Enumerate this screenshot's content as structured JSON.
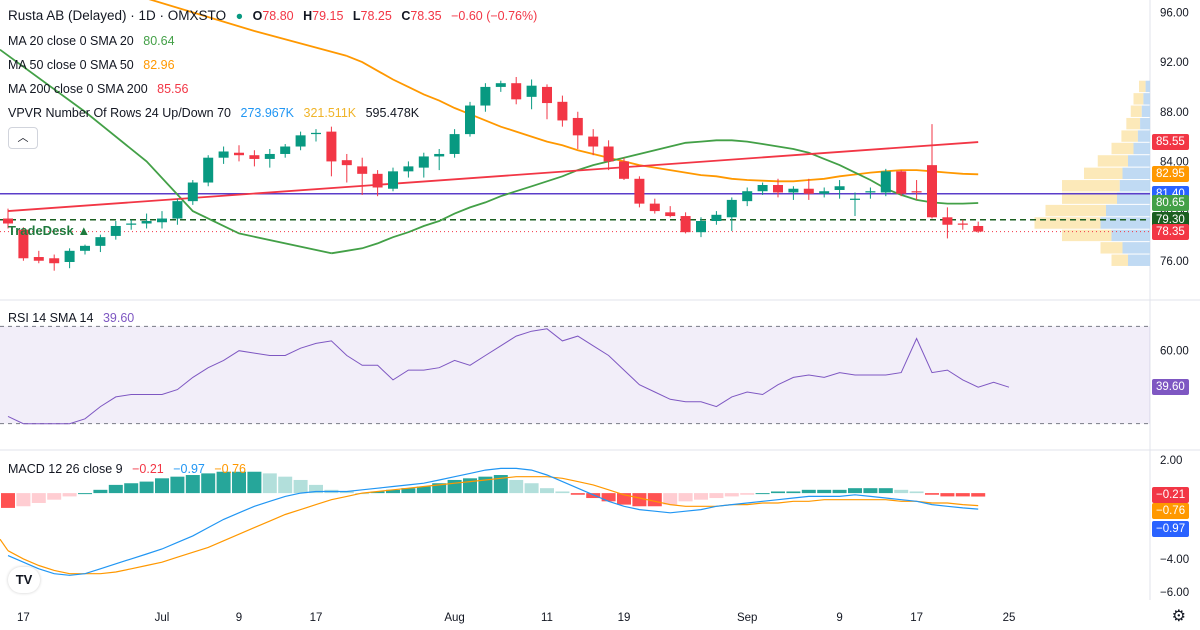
{
  "header": {
    "symbol": "Rusta AB (Delayed) · 1D · OMXSTO",
    "o_label": "O",
    "o": "78.80",
    "h_label": "H",
    "h": "79.15",
    "l_label": "L",
    "l": "78.25",
    "c_label": "C",
    "c": "78.35",
    "change": "−0.60 (−0.76%)"
  },
  "indicators": {
    "ma20": {
      "label": "MA 20 close 0 SMA 20",
      "value": "80.64",
      "color": "#43a047"
    },
    "ma50": {
      "label": "MA 50 close 0 SMA 50",
      "value": "82.96",
      "color": "#ff9800"
    },
    "ma200": {
      "label": "MA 200 close 0 SMA 200",
      "value": "85.56",
      "color": "#f23645"
    },
    "vpvr": {
      "label": "VPVR Number Of Rows 24 Up/Down 70",
      "up": "273.967K",
      "down": "321.511K",
      "total": "595.478K"
    },
    "rsi": {
      "label": "RSI 14 SMA 14",
      "value": "39.60",
      "color": "#7e57c2"
    },
    "macd": {
      "label": "MACD 12 26 close 9",
      "hist": "−0.21",
      "macd": "−0.97",
      "signal": "−0.76"
    }
  },
  "brand_text": "TradeDesk",
  "logo_text": "TV",
  "collapse_icon": "chevron-up-icon",
  "price_tags": [
    {
      "text": "85.55",
      "value": 85.55,
      "bg": "#f23645"
    },
    {
      "text": "82.95",
      "value": 82.95,
      "bg": "#ff9800"
    },
    {
      "text": "81.40",
      "value": 81.4,
      "bg": "#2962ff"
    },
    {
      "text": "80.65",
      "value": 80.65,
      "bg": "#43a047"
    },
    {
      "text": "79.30",
      "value": 79.3,
      "bg": "#1b5e20"
    },
    {
      "text": "78.35",
      "value": 78.35,
      "bg": "#f23645"
    }
  ],
  "rsi_tag": {
    "text": "39.60",
    "bg": "#7e57c2"
  },
  "macd_tags": [
    {
      "text": "−0.21",
      "value": -0.21,
      "bg": "#f23645"
    },
    {
      "text": "−0.76",
      "value": -0.76,
      "bg": "#ff9800"
    },
    {
      "text": "−0.97",
      "value": -0.97,
      "bg": "#2962ff"
    }
  ],
  "chart_data": {
    "type": "candlestick",
    "price_axis": {
      "ticks": [
        "96.00",
        "92.00",
        "88.00",
        "84.00",
        "80.00",
        "76.00"
      ],
      "range": [
        73,
        97
      ]
    },
    "rsi_axis": {
      "ticks": [
        "60.00"
      ],
      "range": [
        20,
        80
      ],
      "bands": [
        70,
        30
      ]
    },
    "macd_axis": {
      "ticks": [
        "2.00",
        "−2.00",
        "−4.00",
        "−6.00"
      ],
      "range": [
        -6.5,
        2.5
      ]
    },
    "x_ticks": [
      "17",
      "Jul",
      "9",
      "17",
      "Aug",
      "11",
      "19",
      "Sep",
      "9",
      "17",
      "25"
    ],
    "x_tick_index": [
      1,
      10,
      15,
      20,
      29,
      35,
      40,
      48,
      54,
      59,
      65
    ],
    "candles": [
      [
        79.4,
        80.2,
        78.6,
        79.0
      ],
      [
        78.5,
        78.7,
        76.0,
        76.2
      ],
      [
        76.3,
        76.8,
        75.8,
        76.0
      ],
      [
        76.2,
        76.5,
        75.2,
        75.8
      ],
      [
        75.9,
        77.0,
        75.4,
        76.8
      ],
      [
        76.8,
        77.3,
        76.5,
        77.2
      ],
      [
        77.2,
        78.1,
        76.7,
        77.9
      ],
      [
        78.0,
        79.2,
        77.7,
        78.8
      ],
      [
        78.9,
        79.3,
        78.5,
        79.0
      ],
      [
        79.0,
        79.8,
        78.6,
        79.2
      ],
      [
        79.1,
        80.0,
        78.6,
        79.4
      ],
      [
        79.4,
        81.0,
        78.9,
        80.8
      ],
      [
        80.8,
        82.5,
        80.5,
        82.3
      ],
      [
        82.3,
        84.5,
        82.0,
        84.3
      ],
      [
        84.3,
        85.2,
        83.8,
        84.8
      ],
      [
        84.7,
        85.3,
        84.0,
        84.5
      ],
      [
        84.5,
        84.9,
        83.6,
        84.2
      ],
      [
        84.2,
        85.0,
        83.5,
        84.6
      ],
      [
        84.6,
        85.4,
        84.3,
        85.2
      ],
      [
        85.2,
        86.4,
        84.9,
        86.1
      ],
      [
        86.2,
        86.6,
        85.6,
        86.3
      ],
      [
        86.4,
        86.8,
        82.8,
        84.0
      ],
      [
        84.1,
        84.6,
        82.3,
        83.7
      ],
      [
        83.6,
        84.3,
        81.3,
        83.0
      ],
      [
        83.0,
        83.3,
        81.2,
        81.9
      ],
      [
        81.8,
        83.5,
        81.6,
        83.2
      ],
      [
        83.2,
        84.0,
        82.7,
        83.6
      ],
      [
        83.5,
        84.7,
        82.7,
        84.4
      ],
      [
        84.4,
        85.0,
        83.3,
        84.6
      ],
      [
        84.6,
        86.6,
        84.3,
        86.2
      ],
      [
        86.2,
        88.8,
        86.0,
        88.5
      ],
      [
        88.5,
        90.3,
        88.0,
        90.0
      ],
      [
        90.0,
        90.5,
        89.6,
        90.3
      ],
      [
        90.3,
        90.8,
        88.6,
        89.0
      ],
      [
        89.2,
        90.6,
        88.2,
        90.1
      ],
      [
        90.0,
        90.2,
        87.4,
        88.7
      ],
      [
        88.8,
        89.3,
        86.8,
        87.3
      ],
      [
        87.5,
        88.0,
        85.0,
        86.1
      ],
      [
        86.0,
        86.6,
        84.5,
        85.2
      ],
      [
        85.2,
        85.7,
        83.3,
        84.0
      ],
      [
        84.0,
        84.3,
        82.5,
        82.6
      ],
      [
        82.6,
        82.8,
        80.3,
        80.6
      ],
      [
        80.6,
        81.0,
        79.8,
        80.0
      ],
      [
        79.9,
        80.4,
        79.5,
        79.6
      ],
      [
        79.6,
        79.9,
        78.2,
        78.3
      ],
      [
        78.3,
        79.5,
        77.9,
        79.2
      ],
      [
        79.2,
        80.0,
        78.9,
        79.7
      ],
      [
        79.5,
        81.1,
        78.4,
        80.9
      ],
      [
        80.8,
        81.9,
        80.4,
        81.6
      ],
      [
        81.6,
        82.3,
        81.3,
        82.1
      ],
      [
        82.1,
        82.6,
        81.1,
        81.5
      ],
      [
        81.5,
        82.0,
        80.9,
        81.8
      ],
      [
        81.8,
        82.6,
        80.9,
        81.4
      ],
      [
        81.4,
        81.9,
        81.1,
        81.6
      ],
      [
        81.7,
        82.5,
        81.0,
        82.0
      ],
      [
        80.9,
        81.5,
        79.6,
        81.0
      ],
      [
        81.5,
        81.9,
        81.0,
        81.6
      ],
      [
        81.5,
        83.4,
        81.2,
        83.2
      ],
      [
        83.2,
        83.3,
        81.2,
        81.4
      ],
      [
        81.6,
        82.5,
        80.9,
        81.5
      ],
      [
        83.7,
        87.0,
        79.4,
        79.5
      ],
      [
        79.5,
        80.3,
        77.8,
        78.9
      ],
      [
        79.0,
        79.3,
        78.5,
        78.9
      ],
      [
        78.8,
        79.15,
        78.25,
        78.35
      ]
    ],
    "ma20": [
      76.6,
      76.8,
      77.0,
      77.4,
      77.9,
      78.3,
      78.8,
      79.2,
      79.8,
      80.3,
      80.7,
      81.2,
      81.6,
      82.0,
      82.4,
      82.8,
      83.3,
      83.7,
      84.0,
      84.3,
      84.6,
      84.9,
      85.2,
      85.5,
      85.6,
      85.7,
      85.7,
      85.6,
      85.4,
      85.2,
      85.0,
      84.7,
      84.2,
      83.7,
      83.1,
      82.5,
      81.8,
      81.3,
      80.9,
      80.7,
      80.6,
      80.6,
      80.65
    ],
    "ma20_start": 21,
    "ma50": [
      92.5,
      92.0,
      91.3,
      90.6,
      90.0,
      89.4,
      88.9,
      88.3,
      87.8,
      87.3,
      86.8,
      86.4,
      86.0,
      85.6,
      85.3,
      84.9,
      84.6,
      84.3,
      84.0,
      83.7,
      83.5,
      83.3,
      83.1,
      82.9,
      82.8,
      82.6,
      82.5,
      82.45,
      82.4,
      82.4,
      82.5,
      82.6,
      82.8,
      82.95,
      83.1,
      83.2,
      83.3,
      83.3,
      83.2,
      83.1,
      83.0,
      82.96
    ],
    "ma50_start": 22,
    "ma200_start": [
      80.0,
      0
    ],
    "ma200_end": [
      85.56,
      63
    ],
    "vpvr": [
      {
        "price": 76.0,
        "up": 40,
        "down": 30
      },
      {
        "price": 77.0,
        "up": 50,
        "down": 40
      },
      {
        "price": 78.0,
        "up": 70,
        "down": 90
      },
      {
        "price": 79.0,
        "up": 90,
        "down": 120
      },
      {
        "price": 80.0,
        "up": 80,
        "down": 110
      },
      {
        "price": 81.0,
        "up": 60,
        "down": 100
      },
      {
        "price": 82.0,
        "up": 55,
        "down": 105
      },
      {
        "price": 83.0,
        "up": 50,
        "down": 70
      },
      {
        "price": 84.0,
        "up": 40,
        "down": 55
      },
      {
        "price": 85.0,
        "up": 30,
        "down": 40
      },
      {
        "price": 86.0,
        "up": 22,
        "down": 30
      },
      {
        "price": 87.0,
        "up": 18,
        "down": 25
      },
      {
        "price": 88.0,
        "up": 15,
        "down": 20
      },
      {
        "price": 89.0,
        "up": 12,
        "down": 18
      },
      {
        "price": 90.0,
        "up": 8,
        "down": 12
      }
    ],
    "rsi": [
      33,
      30,
      30,
      30,
      30,
      32,
      37,
      41,
      42,
      42,
      42,
      44,
      49,
      53,
      56,
      60,
      59,
      58,
      58,
      61,
      63,
      64,
      58,
      54,
      54,
      48,
      52,
      52,
      53,
      56,
      54,
      58,
      62,
      66,
      68,
      69,
      64,
      66,
      62,
      58,
      52,
      46,
      43,
      40,
      39,
      39,
      37,
      41,
      43,
      42,
      46,
      49,
      50,
      49,
      51,
      50,
      50,
      50,
      51,
      65,
      51,
      52,
      48,
      45,
      47,
      45
    ],
    "rsi_sma_band": [
      70,
      30
    ],
    "macd_hist": [
      -0.9,
      -0.8,
      -0.6,
      -0.4,
      -0.2,
      0.0,
      0.2,
      0.5,
      0.6,
      0.7,
      0.9,
      1.0,
      1.1,
      1.2,
      1.3,
      1.3,
      1.3,
      1.2,
      1.0,
      0.8,
      0.5,
      0.2,
      0.1,
      0.0,
      0.1,
      0.2,
      0.3,
      0.4,
      0.6,
      0.8,
      0.9,
      1.0,
      1.1,
      0.8,
      0.6,
      0.3,
      0.1,
      -0.1,
      -0.3,
      -0.5,
      -0.7,
      -0.8,
      -0.8,
      -0.7,
      -0.5,
      -0.4,
      -0.3,
      -0.2,
      -0.1,
      0.0,
      0.1,
      0.1,
      0.2,
      0.2,
      0.2,
      0.3,
      0.3,
      0.3,
      0.2,
      0.1,
      -0.1,
      -0.2,
      -0.2,
      -0.21
    ],
    "macd_line": [
      -3.8,
      -4.2,
      -4.6,
      -4.9,
      -5.0,
      -4.9,
      -4.6,
      -4.3,
      -4.0,
      -3.7,
      -3.4,
      -3.0,
      -2.6,
      -2.1,
      -1.6,
      -1.2,
      -0.8,
      -0.5,
      -0.2,
      0.0,
      0.1,
      0.1,
      0.1,
      0.2,
      0.3,
      0.4,
      0.5,
      0.6,
      0.8,
      1.0,
      1.2,
      1.4,
      1.5,
      1.5,
      1.4,
      1.1,
      0.7,
      0.3,
      -0.1,
      -0.5,
      -0.8,
      -1.0,
      -1.1,
      -1.2,
      -1.1,
      -1.0,
      -0.8,
      -0.7,
      -0.6,
      -0.5,
      -0.4,
      -0.3,
      -0.2,
      -0.2,
      -0.2,
      -0.1,
      -0.2,
      -0.3,
      -0.4,
      -0.5,
      -0.7,
      -0.8,
      -0.9,
      -0.97
    ],
    "macd_signal": [
      -3.5,
      -4.0,
      -4.4,
      -4.7,
      -4.9,
      -4.9,
      -4.9,
      -4.8,
      -4.6,
      -4.4,
      -4.2,
      -3.9,
      -3.6,
      -3.3,
      -2.9,
      -2.5,
      -2.1,
      -1.7,
      -1.3,
      -1.0,
      -0.7,
      -0.4,
      -0.2,
      0.0,
      0.1,
      0.2,
      0.3,
      0.4,
      0.5,
      0.6,
      0.7,
      0.8,
      0.9,
      1.0,
      1.0,
      1.0,
      0.9,
      0.7,
      0.5,
      0.2,
      -0.1,
      -0.3,
      -0.5,
      -0.7,
      -0.8,
      -0.8,
      -0.8,
      -0.7,
      -0.7,
      -0.6,
      -0.6,
      -0.5,
      -0.5,
      -0.4,
      -0.4,
      -0.4,
      -0.4,
      -0.4,
      -0.5,
      -0.5,
      -0.6,
      -0.6,
      -0.7,
      -0.76
    ]
  }
}
